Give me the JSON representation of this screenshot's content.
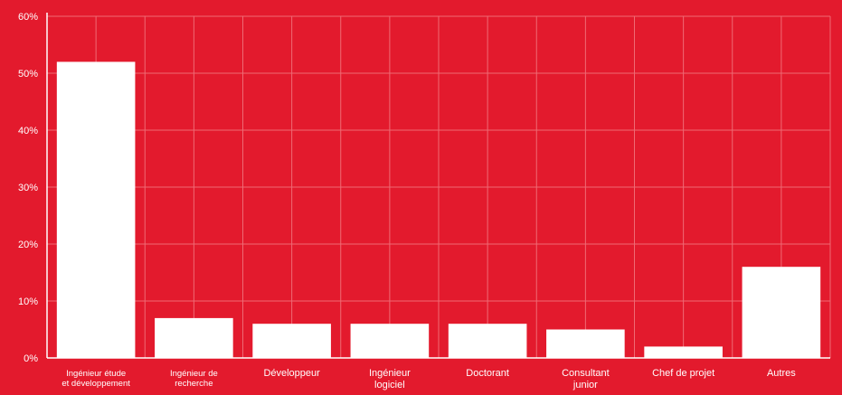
{
  "chart_data": {
    "type": "bar",
    "title": "",
    "xlabel": "",
    "ylabel": "",
    "ylim": [
      0,
      60
    ],
    "yticks": [
      0,
      10,
      20,
      30,
      40,
      50,
      60
    ],
    "ytick_labels": [
      "0%",
      "10%",
      "20%",
      "30%",
      "40%",
      "50%",
      "60%"
    ],
    "grid": true,
    "bar_color": "#ffffff",
    "background_color": "#e31a2d",
    "gridline_color": "#ef6a74",
    "categories": [
      [
        "Ingénieur étude",
        "et développement"
      ],
      [
        "Ingénieur de",
        "recherche"
      ],
      [
        "Développeur"
      ],
      [
        "Ingénieur",
        "logiciel"
      ],
      [
        "Doctorant"
      ],
      [
        "Consultant",
        "junior"
      ],
      [
        "Chef de projet"
      ],
      [
        "Autres"
      ]
    ],
    "values": [
      52,
      7,
      6,
      6,
      6,
      5,
      2,
      16
    ]
  }
}
